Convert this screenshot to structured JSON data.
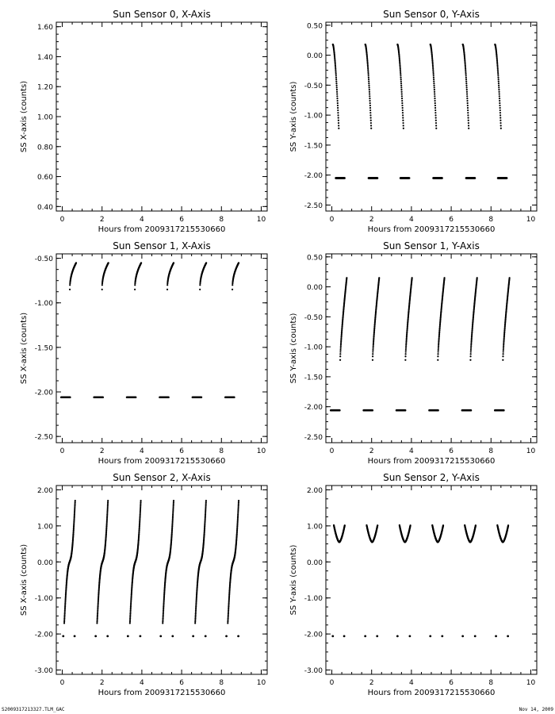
{
  "footer": {
    "left": "S2009317213327.TLM_GAC",
    "right": "Nov 14, 2009"
  },
  "colors": {
    "axis": "#000000",
    "marker": "#000000",
    "background": "#ffffff"
  },
  "chart_data": [
    {
      "type": "scatter",
      "title": "Sun Sensor 0, X-Axis",
      "xlabel": "Hours from 2009317215530660",
      "ylabel": "SS X-axis (counts)",
      "xlim": [
        -0.3,
        10.3
      ],
      "ylim": [
        0.37,
        1.63
      ],
      "xticks": [
        0,
        2,
        4,
        6,
        8,
        10
      ],
      "yticks": [
        0.4,
        0.6,
        0.8,
        1.0,
        1.2,
        1.4,
        1.6
      ],
      "ytick_labels": [
        "0.40",
        "0.60",
        "0.80",
        "1.00",
        "1.20",
        "1.40",
        "1.60"
      ],
      "series": []
    },
    {
      "type": "scatter",
      "title": "Sun Sensor 0, Y-Axis",
      "xlabel": "Hours from 2009317215530660",
      "ylabel": "SS Y-axis (counts)",
      "xlim": [
        -0.3,
        10.3
      ],
      "ylim": [
        -2.6,
        0.55
      ],
      "xticks": [
        0,
        2,
        4,
        6,
        8,
        10
      ],
      "yticks": [
        0.5,
        0.0,
        -0.5,
        -1.0,
        -1.5,
        -2.0,
        -2.5
      ],
      "ytick_labels": [
        "0.50",
        "0.00",
        "-0.50",
        "-1.00",
        "-1.50",
        "-2.00",
        "-2.50"
      ],
      "series": [
        {
          "kind": "arc",
          "starts": [
            0.05,
            1.68,
            3.3,
            4.95,
            6.58,
            8.2
          ],
          "duration": 0.3,
          "y_start": 0.18,
          "y_end": -1.22,
          "exponent": 1.6,
          "step": 0.006
        },
        {
          "kind": "dash",
          "starts": [
            0.2,
            1.85,
            3.45,
            5.1,
            6.75,
            8.35
          ],
          "duration": 0.45,
          "y": -2.05
        }
      ]
    },
    {
      "type": "scatter",
      "title": "Sun Sensor 1, X-Axis",
      "xlabel": "Hours from 2009317215530660",
      "ylabel": "SS X-axis (counts)",
      "xlim": [
        -0.3,
        10.3
      ],
      "ylim": [
        -2.57,
        -0.45
      ],
      "xticks": [
        0,
        2,
        4,
        6,
        8,
        10
      ],
      "yticks": [
        -0.5,
        -1.0,
        -1.5,
        -2.0,
        -2.5
      ],
      "ytick_labels": [
        "-0.50",
        "-1.00",
        "-1.50",
        "-2.00",
        "-2.50"
      ],
      "series": [
        {
          "kind": "arc",
          "starts": [
            0.38,
            2.0,
            3.65,
            5.28,
            6.92,
            8.55
          ],
          "duration": 0.32,
          "y_start": -0.85,
          "y_end": -0.55,
          "exponent": 0.45,
          "step": 0.006
        },
        {
          "kind": "dash",
          "starts": [
            -0.05,
            1.6,
            3.25,
            4.9,
            6.55,
            8.2
          ],
          "duration": 0.45,
          "y": -2.06
        }
      ]
    },
    {
      "type": "scatter",
      "title": "Sun Sensor 1, Y-Axis",
      "xlabel": "Hours from 2009317215530660",
      "ylabel": "SS Y-axis (counts)",
      "xlim": [
        -0.3,
        10.3
      ],
      "ylim": [
        -2.6,
        0.55
      ],
      "xticks": [
        0,
        2,
        4,
        6,
        8,
        10
      ],
      "yticks": [
        0.5,
        0.0,
        -0.5,
        -1.0,
        -1.5,
        -2.0,
        -2.5
      ],
      "ytick_labels": [
        "0.50",
        "0.00",
        "-0.50",
        "-1.00",
        "-1.50",
        "-2.00",
        "-2.50"
      ],
      "series": [
        {
          "kind": "arc",
          "starts": [
            0.42,
            2.05,
            3.7,
            5.33,
            6.97,
            8.6
          ],
          "duration": 0.33,
          "y_start": -1.22,
          "y_end": 0.15,
          "exponent": 0.75,
          "step": 0.005
        },
        {
          "kind": "dash",
          "starts": [
            -0.05,
            1.6,
            3.25,
            4.9,
            6.55,
            8.2
          ],
          "duration": 0.45,
          "y": -2.06
        }
      ]
    },
    {
      "type": "scatter",
      "title": "Sun Sensor 2, X-Axis",
      "xlabel": "Hours from 2009317215530660",
      "ylabel": "SS X-axis (counts)",
      "xlim": [
        -0.3,
        10.3
      ],
      "ylim": [
        -3.12,
        2.12
      ],
      "xticks": [
        0,
        2,
        4,
        6,
        8,
        10
      ],
      "yticks": [
        2.0,
        1.0,
        0.0,
        -1.0,
        -2.0,
        -3.0
      ],
      "ytick_labels": [
        "2.00",
        "1.00",
        "0.00",
        "-1.00",
        "-2.00",
        "-3.00"
      ],
      "series": [
        {
          "kind": "sshape",
          "starts": [
            0.1,
            1.75,
            3.4,
            5.05,
            6.68,
            8.32
          ],
          "duration": 0.55,
          "y_start": -1.7,
          "y_end": 1.72,
          "step": 0.004
        },
        {
          "kind": "dots",
          "x": [
            0.05,
            0.62,
            1.68,
            2.28,
            3.3,
            3.92,
            4.95,
            5.55,
            6.58,
            7.2,
            8.25,
            8.85
          ],
          "y": -2.06
        }
      ]
    },
    {
      "type": "scatter",
      "title": "Sun Sensor 2, Y-Axis",
      "xlabel": "Hours from 2009317215530660",
      "ylabel": "SS Y-axis (counts)",
      "xlim": [
        -0.3,
        10.3
      ],
      "ylim": [
        -3.12,
        2.12
      ],
      "xticks": [
        0,
        2,
        4,
        6,
        8,
        10
      ],
      "yticks": [
        2.0,
        1.0,
        0.0,
        -1.0,
        -2.0,
        -3.0
      ],
      "ytick_labels": [
        "2.00",
        "1.00",
        "0.00",
        "-1.00",
        "-2.00",
        "-3.00"
      ],
      "series": [
        {
          "kind": "ushape",
          "starts": [
            0.1,
            1.75,
            3.4,
            5.05,
            6.68,
            8.32
          ],
          "duration": 0.55,
          "y_top": 1.02,
          "y_bottom": 0.55,
          "step": 0.004
        },
        {
          "kind": "dots",
          "x": [
            0.05,
            0.62,
            1.68,
            2.28,
            3.3,
            3.92,
            4.95,
            5.55,
            6.58,
            7.2,
            8.25,
            8.85
          ],
          "y": -2.06
        }
      ]
    }
  ]
}
